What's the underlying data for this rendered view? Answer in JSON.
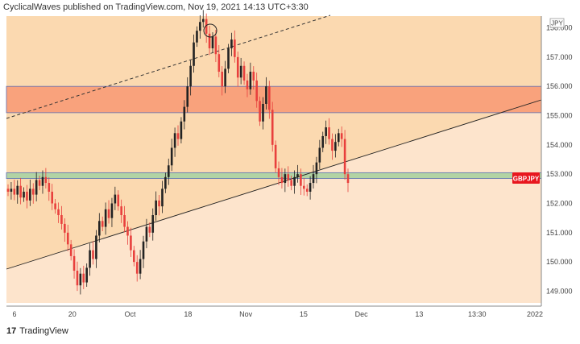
{
  "header": {
    "text": "CyclicalWaves published on TradingView.com, Nov 19, 2021 14:13 UTC+3:30"
  },
  "footer": {
    "logo": "17",
    "brand": "TradingView"
  },
  "currency_label": "JPY",
  "colors": {
    "bg_upper": "#fbd9b0",
    "bg_lower": "#fde4cc",
    "resistance_zone": "#f9a27c",
    "support_zone": "#b2d3a4",
    "up_candle": "#222222",
    "down_candle": "#e8403d",
    "price_tag": "#e8161e"
  },
  "chart_data": {
    "type": "candlestick",
    "symbol": "GBPJPY",
    "ylim": [
      148.6,
      158.4
    ],
    "y_ticks": [
      "158.000",
      "157.000",
      "156.000",
      "155.000",
      "154.000",
      "153.000",
      "152.000",
      "151.000",
      "150.000",
      "149.000"
    ],
    "x_ticks": [
      "6",
      "20",
      "Oct",
      "18",
      "Nov",
      "15",
      "Dec",
      "13",
      "13:30",
      "2022"
    ],
    "last_price_label": "GBPJPY",
    "resistance_zone": [
      155.1,
      156.0
    ],
    "support_zone": [
      152.85,
      153.05
    ],
    "close_series": [
      152.4,
      152.5,
      152.3,
      152.6,
      152.2,
      152.4,
      152.1,
      152.5,
      152.3,
      152.8,
      152.6,
      152.9,
      152.7,
      152.4,
      152.0,
      151.8,
      151.6,
      151.3,
      151.0,
      150.6,
      150.2,
      149.7,
      149.2,
      149.6,
      149.3,
      149.8,
      150.4,
      150.1,
      150.9,
      151.4,
      151.2,
      151.8,
      151.5,
      152.0,
      152.3,
      151.9,
      151.6,
      151.2,
      150.9,
      150.4,
      150.0,
      149.6,
      150.1,
      150.7,
      151.2,
      151.0,
      151.6,
      152.1,
      151.9,
      152.5,
      152.9,
      153.3,
      153.9,
      154.4,
      154.2,
      154.8,
      155.3,
      156.0,
      156.7,
      157.5,
      157.9,
      158.2,
      158.3,
      157.8,
      157.3,
      157.7,
      157.1,
      156.5,
      156.0,
      156.6,
      157.3,
      157.6,
      157.0,
      156.3,
      156.7,
      156.2,
      155.9,
      156.5,
      156.2,
      155.5,
      154.8,
      155.4,
      156.0,
      155.2,
      154.0,
      153.2,
      152.9,
      152.7,
      153.0,
      152.8,
      152.6,
      152.9,
      153.0,
      152.6,
      152.5,
      152.4,
      152.7,
      153.0,
      153.4,
      153.9,
      154.3,
      154.6,
      154.2,
      153.8,
      154.1,
      154.4,
      154.2,
      153.0,
      152.7
    ]
  }
}
